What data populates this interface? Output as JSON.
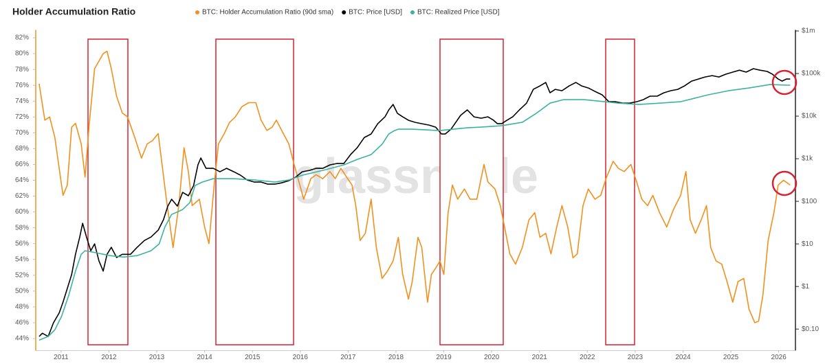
{
  "chart_data": {
    "type": "line",
    "title": "Holder Accumulation Ratio",
    "watermark": "glassnode",
    "xlim": [
      2010.47,
      2026.35
    ],
    "xticks": [
      2011,
      2012,
      2013,
      2014,
      2015,
      2016,
      2017,
      2018,
      2019,
      2020,
      2021,
      2022,
      2023,
      2024,
      2025,
      2026
    ],
    "ylim": [
      43,
      83
    ],
    "yticks": [
      {
        "value": 44,
        "label": "44%"
      },
      {
        "value": 46,
        "label": "46%"
      },
      {
        "value": 48,
        "label": "48%"
      },
      {
        "value": 50,
        "label": "50%"
      },
      {
        "value": 52,
        "label": "52%"
      },
      {
        "value": 54,
        "label": "54%"
      },
      {
        "value": 56,
        "label": "56%"
      },
      {
        "value": 58,
        "label": "58%"
      },
      {
        "value": 60,
        "label": "60%"
      },
      {
        "value": 62,
        "label": "62%"
      },
      {
        "value": 64,
        "label": "64%"
      },
      {
        "value": 66,
        "label": "66%"
      },
      {
        "value": 68,
        "label": "68%"
      },
      {
        "value": 70,
        "label": "70%"
      },
      {
        "value": 72,
        "label": "72%"
      },
      {
        "value": 74,
        "label": "74%"
      },
      {
        "value": 76,
        "label": "76%"
      },
      {
        "value": 78,
        "label": "78%"
      },
      {
        "value": 80,
        "label": "80%"
      },
      {
        "value": 82,
        "label": "82%"
      }
    ],
    "y2lim": [
      0.039,
      1060000
    ],
    "y2scale": "log",
    "y2ticks": [
      {
        "value": 1000000,
        "label": "$1m"
      },
      {
        "value": 100000,
        "label": "$100k"
      },
      {
        "value": 10000,
        "label": "$10k"
      },
      {
        "value": 1000,
        "label": "$1k"
      },
      {
        "value": 100,
        "label": "$100"
      },
      {
        "value": 10,
        "label": "$10"
      },
      {
        "value": 1,
        "label": "$1"
      },
      {
        "value": 0.1,
        "label": "$0.10"
      }
    ],
    "grid": false,
    "series": [
      {
        "name": "BTC: Holder Accumulation Ratio (90d sma)",
        "color": "#f2901e",
        "x": [
          2010.54,
          2010.66,
          2010.76,
          2010.87,
          2010.99,
          2011.04,
          2011.13,
          2011.22,
          2011.3,
          2011.42,
          2011.5,
          2011.59,
          2011.7,
          2011.88,
          2011.96,
          2012.05,
          2012.16,
          2012.28,
          2012.39,
          2012.54,
          2012.68,
          2012.8,
          2012.91,
          2013.03,
          2013.11,
          2013.2,
          2013.34,
          2013.46,
          2013.57,
          2013.66,
          2013.74,
          2013.89,
          2014.0,
          2014.09,
          2014.2,
          2014.29,
          2014.41,
          2014.52,
          2014.64,
          2014.78,
          2014.92,
          2015.07,
          2015.18,
          2015.3,
          2015.41,
          2015.5,
          2015.61,
          2015.76,
          2015.87,
          2015.99,
          2016.07,
          2016.22,
          2016.33,
          2016.47,
          2016.62,
          2016.73,
          2016.85,
          2016.99,
          2017.08,
          2017.16,
          2017.25,
          2017.36,
          2017.48,
          2017.59,
          2017.71,
          2017.82,
          2017.94,
          2018.05,
          2018.14,
          2018.26,
          2018.34,
          2018.46,
          2018.54,
          2018.66,
          2018.74,
          2018.83,
          2018.92,
          2019.0,
          2019.09,
          2019.18,
          2019.29,
          2019.43,
          2019.55,
          2019.69,
          2019.84,
          2019.92,
          2020.07,
          2020.18,
          2020.27,
          2020.38,
          2020.5,
          2020.64,
          2020.78,
          2020.9,
          2021.01,
          2021.13,
          2021.24,
          2021.36,
          2021.47,
          2021.59,
          2021.7,
          2021.79,
          2021.91,
          2022.02,
          2022.16,
          2022.28,
          2022.39,
          2022.54,
          2022.65,
          2022.77,
          2022.91,
          2023.03,
          2023.14,
          2023.26,
          2023.37,
          2023.51,
          2023.66,
          2023.8,
          2023.95,
          2024.06,
          2024.15,
          2024.26,
          2024.38,
          2024.49,
          2024.58,
          2024.69,
          2024.81,
          2024.92,
          2025.04,
          2025.15,
          2025.27,
          2025.38,
          2025.5,
          2025.58,
          2025.67,
          2025.78,
          2025.9,
          2025.99,
          2026.1,
          2026.24
        ],
        "values": [
          76.2,
          71.6,
          72.0,
          69.4,
          64.2,
          62.1,
          63.4,
          70.7,
          71.2,
          68.6,
          64.4,
          71.2,
          78.1,
          80.0,
          80.3,
          78.1,
          74.6,
          72.5,
          72.0,
          69.4,
          66.8,
          68.6,
          69.0,
          69.9,
          66.0,
          61.6,
          55.5,
          60.8,
          68.1,
          65.1,
          60.8,
          61.6,
          58.1,
          56.0,
          63.4,
          68.6,
          69.9,
          71.3,
          72.0,
          73.3,
          73.8,
          73.8,
          71.6,
          70.3,
          70.7,
          71.6,
          70.3,
          68.6,
          66.0,
          63.4,
          61.6,
          64.2,
          64.7,
          64.2,
          65.1,
          64.2,
          65.5,
          64.2,
          63.4,
          60.8,
          56.4,
          57.3,
          61.6,
          55.5,
          51.6,
          52.5,
          53.8,
          56.8,
          52.1,
          49.0,
          51.2,
          56.8,
          55.5,
          48.6,
          52.1,
          52.9,
          53.8,
          52.1,
          59.9,
          63.4,
          61.6,
          62.9,
          61.6,
          61.6,
          66.0,
          63.8,
          62.9,
          60.8,
          58.1,
          54.7,
          53.4,
          55.5,
          59.0,
          59.9,
          56.8,
          57.3,
          54.7,
          58.1,
          60.8,
          58.1,
          54.2,
          54.7,
          60.8,
          62.9,
          61.6,
          62.1,
          64.2,
          66.4,
          65.5,
          65.1,
          66.0,
          63.8,
          61.6,
          60.8,
          62.1,
          59.9,
          58.1,
          60.3,
          62.1,
          65.1,
          59.0,
          57.3,
          59.0,
          60.8,
          55.5,
          53.8,
          53.4,
          51.2,
          48.6,
          51.2,
          51.6,
          47.7,
          46.0,
          46.2,
          49.5,
          56.4,
          59.9,
          63.4,
          64.0,
          63.4
        ]
      },
      {
        "name": "BTC: Price [USD]",
        "color": "#000000",
        "axis": "y2",
        "x": [
          2010.54,
          2010.61,
          2010.73,
          2010.84,
          2010.96,
          2011.04,
          2011.13,
          2011.22,
          2011.3,
          2011.39,
          2011.45,
          2011.53,
          2011.62,
          2011.7,
          2011.79,
          2011.88,
          2011.96,
          2012.05,
          2012.16,
          2012.28,
          2012.45,
          2012.59,
          2012.74,
          2012.88,
          2013.03,
          2013.14,
          2013.23,
          2013.31,
          2013.43,
          2013.54,
          2013.66,
          2013.77,
          2013.86,
          2013.92,
          2014.03,
          2014.18,
          2014.32,
          2014.46,
          2014.61,
          2014.75,
          2014.89,
          2015.04,
          2015.18,
          2015.32,
          2015.47,
          2015.61,
          2015.76,
          2015.9,
          2016.04,
          2016.19,
          2016.33,
          2016.47,
          2016.62,
          2016.76,
          2016.91,
          2017.05,
          2017.19,
          2017.34,
          2017.48,
          2017.62,
          2017.77,
          2017.85,
          2017.94,
          2018.03,
          2018.14,
          2018.26,
          2018.4,
          2018.54,
          2018.69,
          2018.83,
          2018.95,
          2019.03,
          2019.15,
          2019.23,
          2019.35,
          2019.49,
          2019.63,
          2019.78,
          2019.92,
          2020.04,
          2020.12,
          2020.21,
          2020.32,
          2020.44,
          2020.58,
          2020.73,
          2020.87,
          2021.01,
          2021.13,
          2021.22,
          2021.33,
          2021.47,
          2021.62,
          2021.76,
          2021.88,
          2022.02,
          2022.16,
          2022.31,
          2022.45,
          2022.59,
          2022.74,
          2022.88,
          2023.03,
          2023.17,
          2023.31,
          2023.46,
          2023.6,
          2023.74,
          2023.89,
          2024.03,
          2024.18,
          2024.32,
          2024.46,
          2024.61,
          2024.75,
          2024.89,
          2025.04,
          2025.18,
          2025.32,
          2025.47,
          2025.61,
          2025.76,
          2025.87,
          2025.99,
          2026.07,
          2026.16,
          2026.24
        ],
        "values": [
          0.067,
          0.08,
          0.067,
          0.14,
          0.24,
          0.43,
          0.9,
          1.9,
          5.7,
          14.5,
          30.5,
          14.5,
          6.9,
          10,
          4.0,
          2.3,
          5.7,
          8.3,
          4.8,
          5.7,
          5.7,
          8.3,
          12,
          14.5,
          21,
          37,
          77,
          112,
          77,
          162,
          135,
          235,
          716,
          1040,
          594,
          594,
          494,
          594,
          494,
          410,
          316,
          283,
          283,
          253,
          253,
          272,
          305,
          367,
          494,
          532,
          594,
          594,
          716,
          771,
          771,
          1250,
          1810,
          3160,
          3810,
          6650,
          9640,
          14000,
          18800,
          11600,
          9640,
          8000,
          7160,
          6650,
          6170,
          5520,
          3810,
          3810,
          4940,
          6650,
          10400,
          14000,
          9640,
          8950,
          9640,
          8000,
          6650,
          6650,
          8000,
          9640,
          14000,
          20200,
          42500,
          51300,
          61700,
          35300,
          42500,
          39500,
          51300,
          61700,
          51300,
          45800,
          38100,
          31600,
          21800,
          21800,
          20200,
          20200,
          21800,
          24400,
          29400,
          29400,
          35300,
          39500,
          42500,
          51300,
          66500,
          74300,
          83000,
          89500,
          83000,
          96400,
          108000,
          120000,
          108000,
          130000,
          120000,
          112000,
          96400,
          74300,
          66500,
          74300,
          74300
        ]
      },
      {
        "name": "BTC: Realized Price [USD]",
        "color": "#3bb3a0",
        "axis": "y2",
        "x": [
          2010.54,
          2010.73,
          2010.87,
          2011.01,
          2011.16,
          2011.3,
          2011.42,
          2011.5,
          2011.73,
          2012.02,
          2012.31,
          2012.59,
          2012.88,
          2013.05,
          2013.17,
          2013.31,
          2013.54,
          2013.69,
          2013.8,
          2013.95,
          2014.18,
          2014.61,
          2015.04,
          2015.47,
          2015.76,
          2016.04,
          2016.47,
          2016.91,
          2017.19,
          2017.48,
          2017.71,
          2017.85,
          2017.97,
          2018.05,
          2018.34,
          2018.92,
          2019.2,
          2019.49,
          2019.78,
          2020.21,
          2020.64,
          2020.93,
          2021.22,
          2021.5,
          2021.93,
          2022.36,
          2022.65,
          2023.08,
          2023.51,
          2023.95,
          2024.23,
          2024.52,
          2024.95,
          2025.38,
          2025.82,
          2026.24
        ],
        "values": [
          0.055,
          0.067,
          0.096,
          0.2,
          0.62,
          2.3,
          5.7,
          6.9,
          6.2,
          5.3,
          4.9,
          5.3,
          6.9,
          10,
          25,
          49,
          64,
          93,
          235,
          283,
          340,
          340,
          316,
          283,
          316,
          410,
          532,
          716,
          964,
          1250,
          2180,
          3810,
          4580,
          4940,
          4940,
          4580,
          4940,
          5320,
          5520,
          5940,
          7160,
          11600,
          20200,
          24400,
          24400,
          21800,
          20200,
          18800,
          20200,
          21800,
          26200,
          31600,
          39500,
          45800,
          55200,
          53200
        ]
      }
    ]
  }
}
